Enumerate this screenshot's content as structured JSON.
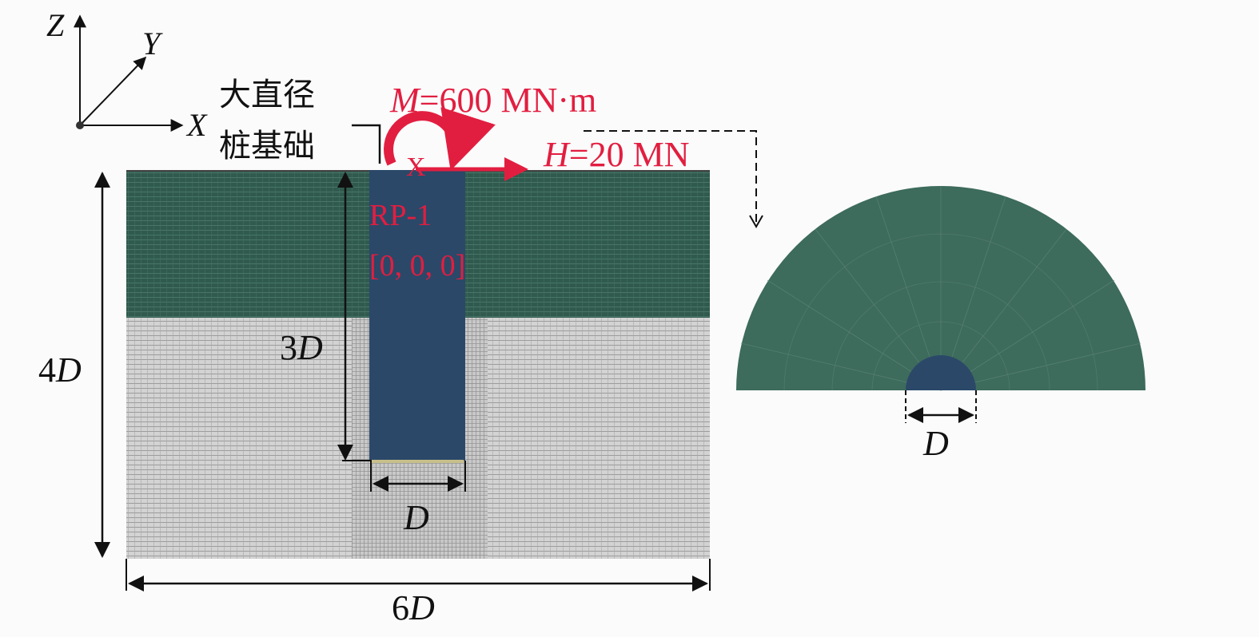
{
  "axes": {
    "z": "Z",
    "y": "Y",
    "x": "X"
  },
  "pile_label": {
    "line1": "大直径",
    "line2": "桩基础"
  },
  "loads": {
    "moment": {
      "symbol": "M",
      "value": "=600 MN·m"
    },
    "horizontal": {
      "symbol": "H",
      "value": "=20 MN"
    }
  },
  "reference_point": {
    "marker": "X",
    "name": "RP-1",
    "coords": "[0, 0, 0]"
  },
  "dimensions": {
    "height": {
      "num": "4",
      "sym": "D"
    },
    "width": {
      "num": "6",
      "sym": "D"
    },
    "embed": {
      "num": "3",
      "sym": "D"
    },
    "diameter": {
      "sym": "D"
    },
    "plan_diameter": {
      "sym": "D"
    }
  },
  "colors": {
    "upper_soil": "#2f5a4d",
    "lower_soil": "#d6d6d6",
    "pile": "#2b4869",
    "load": "#e21e40",
    "plan_soil": "#3d6b5c"
  }
}
